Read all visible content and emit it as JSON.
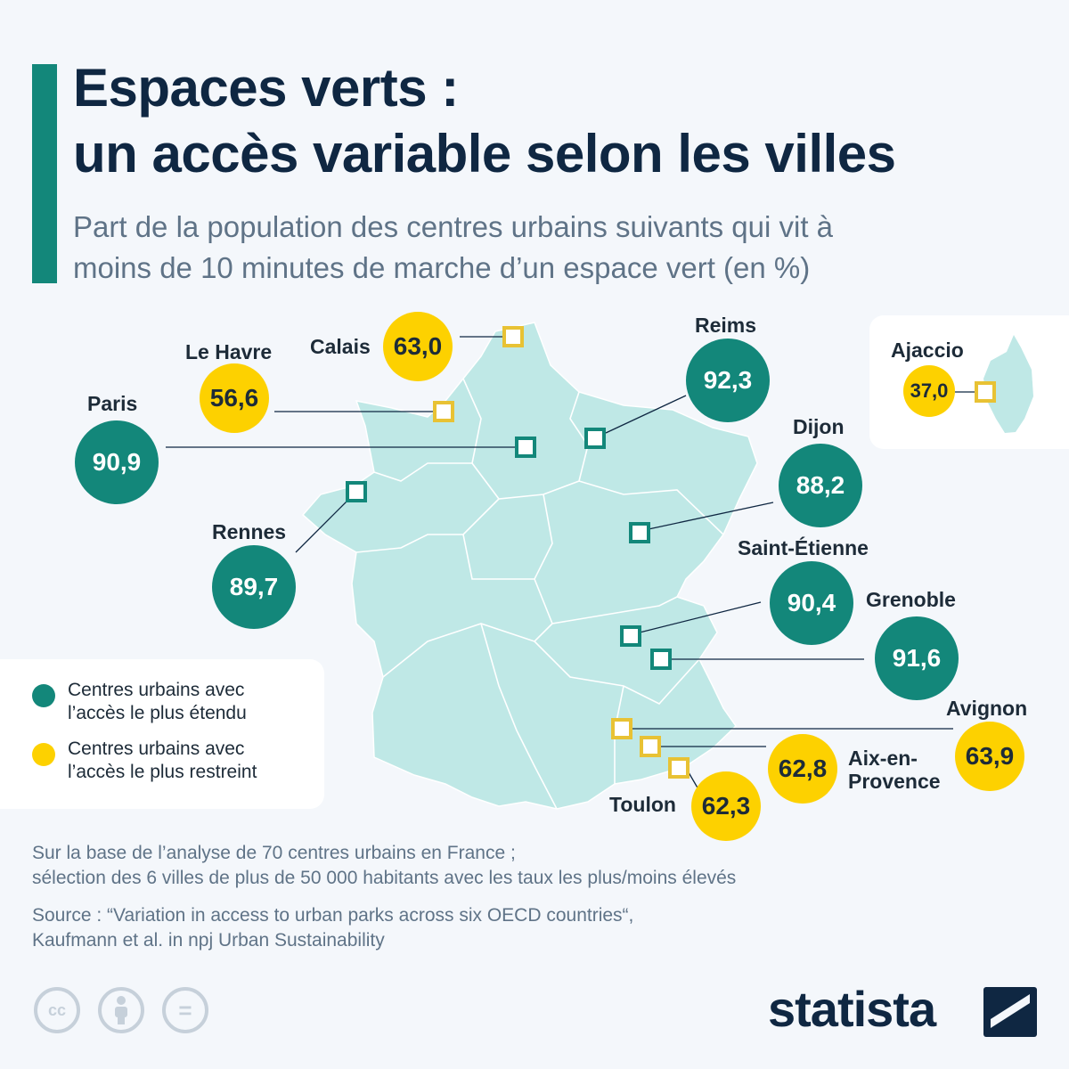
{
  "header": {
    "title_line1": "Espaces verts :",
    "title_line2": "un accès variable selon les villes",
    "subtitle_line1": "Part de la population des centres urbains suivants qui vit à",
    "subtitle_line2": "moins de 10 minutes de marche d’un espace vert (en %)"
  },
  "colors": {
    "accent": "#13877a",
    "high": "#13877a",
    "low": "#fdd100",
    "land": "#bfe8e6",
    "text": "#0f2742"
  },
  "cities": [
    {
      "name": "Calais",
      "value": "63,0",
      "group": "low"
    },
    {
      "name": "Le Havre",
      "value": "56,6",
      "group": "low"
    },
    {
      "name": "Paris",
      "value": "90,9",
      "group": "high"
    },
    {
      "name": "Reims",
      "value": "92,3",
      "group": "high"
    },
    {
      "name": "Dijon",
      "value": "88,2",
      "group": "high"
    },
    {
      "name": "Rennes",
      "value": "89,7",
      "group": "high"
    },
    {
      "name": "Saint-Étienne",
      "value": "90,4",
      "group": "high"
    },
    {
      "name": "Grenoble",
      "value": "91,6",
      "group": "high"
    },
    {
      "name": "Avignon",
      "value": "63,9",
      "group": "low"
    },
    {
      "name": "Aix-en-",
      "name2": "Provence",
      "value": "62,8",
      "group": "low"
    },
    {
      "name": "Toulon",
      "value": "62,3",
      "group": "low"
    },
    {
      "name": "Ajaccio",
      "value": "37,0",
      "group": "low"
    }
  ],
  "legend": {
    "high_line1": "Centres urbains avec",
    "high_line2": "l’accès le plus étendu",
    "low_line1": "Centres urbains avec",
    "low_line2": "l’accès le plus restreint"
  },
  "footer": {
    "note_line1": "Sur la base de l’analyse de 70 centres urbains en France ;",
    "note_line2": "sélection des 6 villes de plus de 50 000 habitants avec les taux les plus/moins élevés",
    "source_line1": "Source : “Variation in access to urban parks across six OECD countries“,",
    "source_line2": "Kaufmann et al. in npj Urban Sustainability",
    "brand": "statista",
    "license_icons": [
      "cc-icon",
      "attribution-icon",
      "no-derivatives-icon"
    ],
    "cc_text": "cc",
    "nd_text": "="
  }
}
